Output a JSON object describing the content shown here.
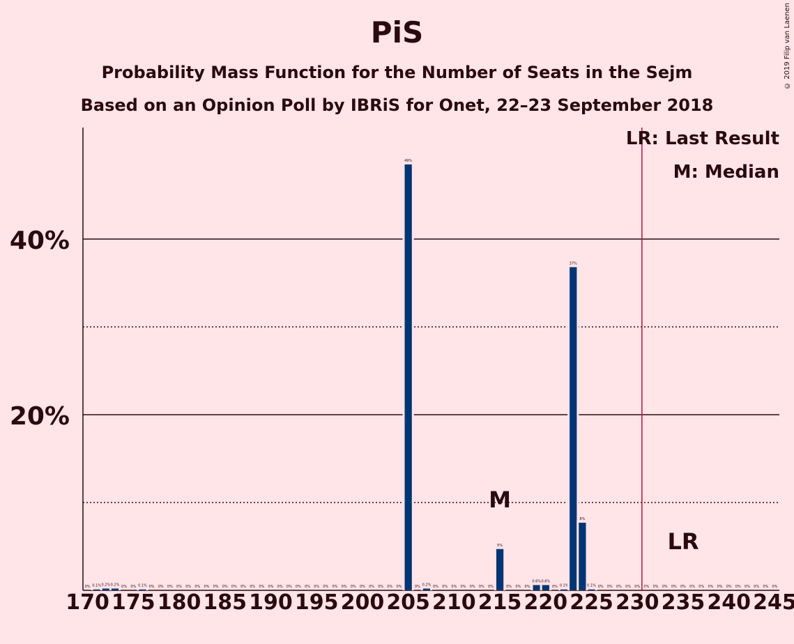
{
  "title": "PiS",
  "subtitle1": "Probability Mass Function for the Number of Seats in the Sejm",
  "subtitle2": "Based on an Opinion Poll by IBRiS for Onet, 22–23 September 2018",
  "copyright": "© 2019 Filip van Laenen",
  "legend": {
    "last_result": "LR: Last Result",
    "median": "M: Median"
  },
  "colors": {
    "background": "#FFE4E8",
    "bar": "#003574",
    "last_result_line": "#C0103A",
    "text": "#2a0a10"
  },
  "chart_data": {
    "type": "bar",
    "x_min": 170,
    "x_max": 245,
    "x_ticks": [
      170,
      175,
      180,
      185,
      190,
      195,
      200,
      205,
      210,
      215,
      220,
      225,
      230,
      235,
      240,
      245
    ],
    "ylim": [
      0,
      52.7
    ],
    "y_ticks_major": [
      {
        "value": 20,
        "label": "20%"
      },
      {
        "value": 40,
        "label": "40%"
      }
    ],
    "y_ticks_dotted": [
      10,
      30
    ],
    "median": {
      "seat": 215,
      "label": "M"
    },
    "last_result": {
      "seat": 231,
      "label": "LR"
    },
    "bars": [
      {
        "seat": 170,
        "value": 0,
        "label": "0%"
      },
      {
        "seat": 171,
        "value": 0.1,
        "label": "0.1%"
      },
      {
        "seat": 172,
        "value": 0.2,
        "label": "0.2%"
      },
      {
        "seat": 173,
        "value": 0.2,
        "label": "0.2%"
      },
      {
        "seat": 174,
        "value": 0,
        "label": "0%"
      },
      {
        "seat": 175,
        "value": 0,
        "label": "0%"
      },
      {
        "seat": 176,
        "value": 0.1,
        "label": "0.1%"
      },
      {
        "seat": 177,
        "value": 0,
        "label": "0%"
      },
      {
        "seat": 178,
        "value": 0,
        "label": "0%"
      },
      {
        "seat": 179,
        "value": 0,
        "label": "0%"
      },
      {
        "seat": 180,
        "value": 0,
        "label": "0%"
      },
      {
        "seat": 181,
        "value": 0,
        "label": "0%"
      },
      {
        "seat": 182,
        "value": 0,
        "label": "0%"
      },
      {
        "seat": 183,
        "value": 0,
        "label": "0%"
      },
      {
        "seat": 184,
        "value": 0,
        "label": "0%"
      },
      {
        "seat": 185,
        "value": 0,
        "label": "0%"
      },
      {
        "seat": 186,
        "value": 0,
        "label": "0%"
      },
      {
        "seat": 187,
        "value": 0,
        "label": "0%"
      },
      {
        "seat": 188,
        "value": 0,
        "label": "0%"
      },
      {
        "seat": 189,
        "value": 0,
        "label": "0%"
      },
      {
        "seat": 190,
        "value": 0,
        "label": "0%"
      },
      {
        "seat": 191,
        "value": 0,
        "label": "0%"
      },
      {
        "seat": 192,
        "value": 0,
        "label": "0%"
      },
      {
        "seat": 193,
        "value": 0,
        "label": "0%"
      },
      {
        "seat": 194,
        "value": 0,
        "label": "0%"
      },
      {
        "seat": 195,
        "value": 0,
        "label": "0%"
      },
      {
        "seat": 196,
        "value": 0,
        "label": "0%"
      },
      {
        "seat": 197,
        "value": 0,
        "label": "0%"
      },
      {
        "seat": 198,
        "value": 0,
        "label": "0%"
      },
      {
        "seat": 199,
        "value": 0,
        "label": "0%"
      },
      {
        "seat": 200,
        "value": 0,
        "label": "0%"
      },
      {
        "seat": 201,
        "value": 0,
        "label": "0%"
      },
      {
        "seat": 202,
        "value": 0,
        "label": "0%"
      },
      {
        "seat": 203,
        "value": 0,
        "label": "0%"
      },
      {
        "seat": 204,
        "value": 0,
        "label": "0%"
      },
      {
        "seat": 205,
        "value": 48.5,
        "label": "49%"
      },
      {
        "seat": 206,
        "value": 0,
        "label": "0%"
      },
      {
        "seat": 207,
        "value": 0.2,
        "label": "0.2%"
      },
      {
        "seat": 208,
        "value": 0,
        "label": "0%"
      },
      {
        "seat": 209,
        "value": 0,
        "label": "0%"
      },
      {
        "seat": 210,
        "value": 0,
        "label": "0%"
      },
      {
        "seat": 211,
        "value": 0,
        "label": "0%"
      },
      {
        "seat": 212,
        "value": 0,
        "label": "0%"
      },
      {
        "seat": 213,
        "value": 0,
        "label": "0%"
      },
      {
        "seat": 214,
        "value": 0,
        "label": "0%"
      },
      {
        "seat": 215,
        "value": 4.7,
        "label": "5%"
      },
      {
        "seat": 216,
        "value": 0,
        "label": "0%"
      },
      {
        "seat": 217,
        "value": 0,
        "label": "0%"
      },
      {
        "seat": 218,
        "value": 0,
        "label": "0%"
      },
      {
        "seat": 219,
        "value": 0.6,
        "label": "0.6%"
      },
      {
        "seat": 220,
        "value": 0.6,
        "label": "0.6%"
      },
      {
        "seat": 221,
        "value": 0,
        "label": "0%"
      },
      {
        "seat": 222,
        "value": 0.1,
        "label": "0.1%"
      },
      {
        "seat": 223,
        "value": 36.8,
        "label": "37%"
      },
      {
        "seat": 224,
        "value": 7.7,
        "label": "8%"
      },
      {
        "seat": 225,
        "value": 0.1,
        "label": "0.1%"
      },
      {
        "seat": 226,
        "value": 0,
        "label": "0%"
      },
      {
        "seat": 227,
        "value": 0,
        "label": "0%"
      },
      {
        "seat": 228,
        "value": 0,
        "label": "0%"
      },
      {
        "seat": 229,
        "value": 0,
        "label": "0%"
      },
      {
        "seat": 230,
        "value": 0,
        "label": "0%"
      },
      {
        "seat": 231,
        "value": 0,
        "label": "0%"
      },
      {
        "seat": 232,
        "value": 0,
        "label": "0%"
      },
      {
        "seat": 233,
        "value": 0,
        "label": "0%"
      },
      {
        "seat": 234,
        "value": 0,
        "label": "0%"
      },
      {
        "seat": 235,
        "value": 0,
        "label": "0%"
      },
      {
        "seat": 236,
        "value": 0,
        "label": "0%"
      },
      {
        "seat": 237,
        "value": 0,
        "label": "0%"
      },
      {
        "seat": 238,
        "value": 0,
        "label": "0%"
      },
      {
        "seat": 239,
        "value": 0,
        "label": "0%"
      },
      {
        "seat": 240,
        "value": 0,
        "label": "0%"
      },
      {
        "seat": 241,
        "value": 0,
        "label": "0%"
      },
      {
        "seat": 242,
        "value": 0,
        "label": "0%"
      },
      {
        "seat": 243,
        "value": 0,
        "label": "0%"
      },
      {
        "seat": 244,
        "value": 0,
        "label": "0%"
      },
      {
        "seat": 245,
        "value": 0,
        "label": "0%"
      }
    ]
  }
}
